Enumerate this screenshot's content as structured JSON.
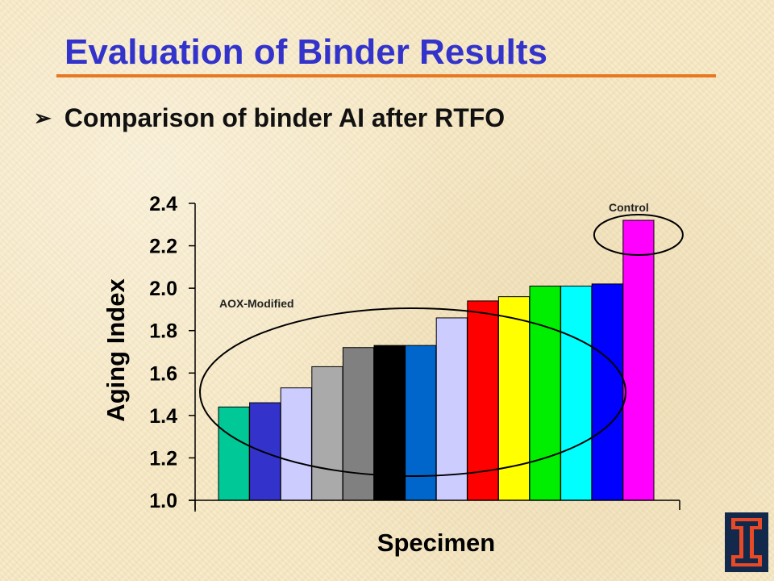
{
  "slide": {
    "title": "Evaluation of Binder Results",
    "bullet_symbol": "➢",
    "bullet_text": "Comparison of binder AI after RTFO"
  },
  "annotations": {
    "group_label": "AOX-Modified",
    "control_label": "Control"
  },
  "colors": {
    "title": "#3333cc",
    "rule": "#e87722",
    "logo_blue": "#13294b",
    "logo_orange": "#e84a27"
  },
  "logo": {
    "icon": "university-block-i-logo"
  },
  "chart_data": {
    "type": "bar",
    "title": "",
    "xlabel": "Specimen",
    "ylabel": "Aging Index",
    "ylim": [
      1.0,
      2.4
    ],
    "yticks": [
      "1.0",
      "1.2",
      "1.4",
      "1.6",
      "1.8",
      "2.0",
      "2.2",
      "2.4"
    ],
    "grid": false,
    "legend": "none",
    "values": [
      1.44,
      1.46,
      1.53,
      1.63,
      1.72,
      1.73,
      1.73,
      1.86,
      1.94,
      1.96,
      2.01,
      2.01,
      2.02,
      2.32
    ],
    "colors": [
      "#00c896",
      "#3333cc",
      "#ccccff",
      "#aaaaaa",
      "#808080",
      "#000000",
      "#0066cc",
      "#ccccff",
      "#ff0000",
      "#ffff00",
      "#00ee00",
      "#00ffff",
      "#0000ff",
      "#ff00ff"
    ]
  }
}
